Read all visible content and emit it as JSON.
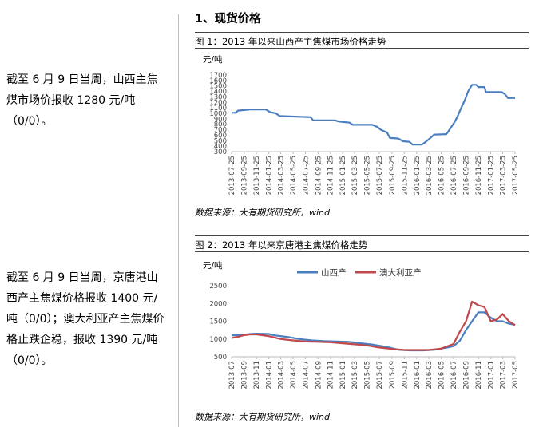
{
  "paragraphs": {
    "p1": "截至 6 月 9 日当周，山西主焦煤市场价报收 1280 元/吨（0/0）。",
    "p2": "截至 6 月 9 日当周，京唐港山西产主焦煤价格报收 1400 元/吨（0/0）；澳大利亚产主焦煤价格止跌企稳，报收 1390 元/吨（0/0）。"
  },
  "section_title": "1、现货价格",
  "figure1": {
    "caption": "图 1：2013 年以来山西产主焦煤市场价格走势",
    "source": "数据来源：大有期货研究所，wind"
  },
  "figure2": {
    "caption": "图 2：2013 年以来京唐港主焦煤价格走势",
    "source": "数据来源：大有期货研究所，wind"
  },
  "chart_data": [
    {
      "type": "line",
      "ylabel": "元/吨",
      "ylim": [
        300,
        1700
      ],
      "yticks": [
        300,
        400,
        500,
        600,
        700,
        800,
        900,
        1000,
        1100,
        1200,
        1300,
        1400,
        1500,
        1600,
        1700
      ],
      "grid": false,
      "xlim": [
        "2013-07-25",
        "2017-05-25"
      ],
      "xticks": [
        "2013-07-25",
        "2013-09-25",
        "2013-11-25",
        "2014-01-25",
        "2014-03-25",
        "2014-05-25",
        "2014-07-25",
        "2014-09-25",
        "2014-11-25",
        "2015-01-25",
        "2015-03-25",
        "2015-05-25",
        "2015-07-25",
        "2015-09-25",
        "2015-11-25",
        "2016-01-25",
        "2016-03-25",
        "2016-05-25",
        "2016-07-25",
        "2016-09-25",
        "2016-11-25",
        "2017-01-25",
        "2017-03-25",
        "2017-05-25"
      ],
      "series": [
        {
          "color": "#4a7ebf",
          "points": [
            [
              "2013-07-25",
              1010
            ],
            [
              "2013-08-15",
              1010
            ],
            [
              "2013-08-25",
              1050
            ],
            [
              "2013-09-25",
              1060
            ],
            [
              "2013-10-25",
              1070
            ],
            [
              "2014-01-10",
              1070
            ],
            [
              "2014-02-01",
              1020
            ],
            [
              "2014-03-01",
              1000
            ],
            [
              "2014-03-20",
              950
            ],
            [
              "2014-08-20",
              930
            ],
            [
              "2014-09-01",
              870
            ],
            [
              "2014-12-20",
              870
            ],
            [
              "2015-01-05",
              850
            ],
            [
              "2015-03-01",
              830
            ],
            [
              "2015-03-15",
              790
            ],
            [
              "2015-06-20",
              790
            ],
            [
              "2015-07-15",
              750
            ],
            [
              "2015-08-01",
              700
            ],
            [
              "2015-09-01",
              650
            ],
            [
              "2015-09-15",
              550
            ],
            [
              "2015-10-25",
              540
            ],
            [
              "2015-11-20",
              490
            ],
            [
              "2015-12-20",
              480
            ],
            [
              "2016-01-05",
              430
            ],
            [
              "2016-02-20",
              430
            ],
            [
              "2016-03-10",
              480
            ],
            [
              "2016-04-05",
              560
            ],
            [
              "2016-04-20",
              610
            ],
            [
              "2016-06-20",
              620
            ],
            [
              "2016-07-05",
              700
            ],
            [
              "2016-08-01",
              850
            ],
            [
              "2016-08-15",
              950
            ],
            [
              "2016-09-01",
              1100
            ],
            [
              "2016-09-20",
              1250
            ],
            [
              "2016-10-05",
              1400
            ],
            [
              "2016-10-25",
              1520
            ],
            [
              "2016-11-15",
              1520
            ],
            [
              "2016-11-25",
              1480
            ],
            [
              "2016-12-25",
              1480
            ],
            [
              "2017-01-01",
              1390
            ],
            [
              "2017-02-10",
              1390
            ],
            [
              "2017-03-20",
              1390
            ],
            [
              "2017-04-05",
              1350
            ],
            [
              "2017-04-20",
              1280
            ],
            [
              "2017-05-25",
              1280
            ]
          ]
        }
      ]
    },
    {
      "type": "line",
      "ylabel": "元/吨",
      "ylim": [
        500,
        2500
      ],
      "yticks": [
        500,
        1000,
        1500,
        2000,
        2500
      ],
      "grid": false,
      "legend": "top",
      "xlim": [
        "2013-07",
        "2017-05"
      ],
      "xticks": [
        "2013-07",
        "2013-09",
        "2013-11",
        "2014-01",
        "2014-03",
        "2014-05",
        "2014-07",
        "2014-09",
        "2014-11",
        "2015-01",
        "2015-03",
        "2015-05",
        "2015-07",
        "2015-09",
        "2015-11",
        "2016-01",
        "2016-03",
        "2016-05",
        "2016-07",
        "2016-09",
        "2016-11",
        "2017-01",
        "2017-03",
        "2017-05"
      ],
      "series": [
        {
          "name": "山西产",
          "color": "#4a7ebf",
          "points": [
            [
              "2013-07",
              1100
            ],
            [
              "2013-08",
              1110
            ],
            [
              "2013-09",
              1120
            ],
            [
              "2013-10",
              1140
            ],
            [
              "2013-11",
              1150
            ],
            [
              "2014-01",
              1140
            ],
            [
              "2014-02",
              1100
            ],
            [
              "2014-04",
              1060
            ],
            [
              "2014-06",
              1000
            ],
            [
              "2014-08",
              960
            ],
            [
              "2014-10",
              940
            ],
            [
              "2014-12",
              930
            ],
            [
              "2015-02",
              920
            ],
            [
              "2015-04",
              880
            ],
            [
              "2015-06",
              840
            ],
            [
              "2015-08",
              780
            ],
            [
              "2015-10",
              700
            ],
            [
              "2015-12",
              680
            ],
            [
              "2016-02",
              680
            ],
            [
              "2016-04",
              700
            ],
            [
              "2016-06",
              760
            ],
            [
              "2016-07",
              800
            ],
            [
              "2016-08",
              950
            ],
            [
              "2016-09",
              1250
            ],
            [
              "2016-10",
              1500
            ],
            [
              "2016-11",
              1750
            ],
            [
              "2016-12",
              1750
            ],
            [
              "2017-01",
              1600
            ],
            [
              "2017-02",
              1500
            ],
            [
              "2017-03",
              1500
            ],
            [
              "2017-04",
              1430
            ],
            [
              "2017-05",
              1400
            ]
          ]
        },
        {
          "name": "澳大利亚产",
          "color": "#c0474a",
          "points": [
            [
              "2013-07",
              1030
            ],
            [
              "2013-08",
              1060
            ],
            [
              "2013-09",
              1110
            ],
            [
              "2013-10",
              1130
            ],
            [
              "2013-11",
              1130
            ],
            [
              "2014-01",
              1080
            ],
            [
              "2014-03",
              1000
            ],
            [
              "2014-05",
              960
            ],
            [
              "2014-07",
              930
            ],
            [
              "2014-09",
              920
            ],
            [
              "2014-11",
              910
            ],
            [
              "2015-01",
              880
            ],
            [
              "2015-03",
              850
            ],
            [
              "2015-05",
              820
            ],
            [
              "2015-07",
              760
            ],
            [
              "2015-09",
              720
            ],
            [
              "2015-11",
              690
            ],
            [
              "2016-01",
              690
            ],
            [
              "2016-03",
              690
            ],
            [
              "2016-05",
              730
            ],
            [
              "2016-07",
              860
            ],
            [
              "2016-08",
              1200
            ],
            [
              "2016-09",
              1500
            ],
            [
              "2016-10",
              2050
            ],
            [
              "2016-11",
              1950
            ],
            [
              "2016-12",
              1900
            ],
            [
              "2017-01",
              1500
            ],
            [
              "2017-02",
              1550
            ],
            [
              "2017-03",
              1700
            ],
            [
              "2017-04",
              1500
            ],
            [
              "2017-05",
              1390
            ]
          ]
        }
      ]
    }
  ]
}
